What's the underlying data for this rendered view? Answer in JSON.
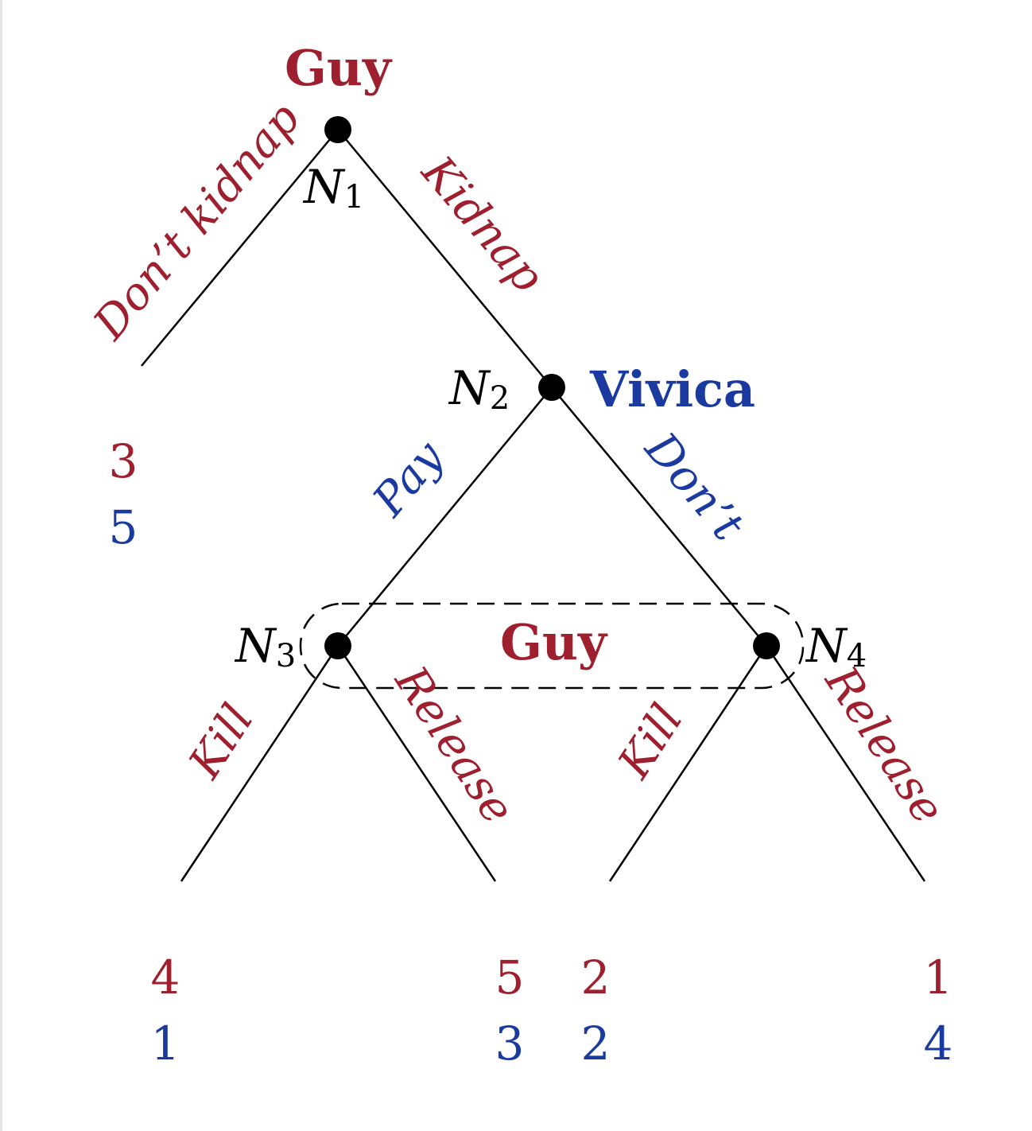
{
  "colors": {
    "guy": "#9e1f2e",
    "vivica": "#1a3aa0",
    "ink": "#000000"
  },
  "players": {
    "top": "Guy",
    "middle": "Vivica",
    "info_set": "Guy"
  },
  "nodes": [
    {
      "letter": "N",
      "sub": "1"
    },
    {
      "letter": "N",
      "sub": "2"
    },
    {
      "letter": "N",
      "sub": "3"
    },
    {
      "letter": "N",
      "sub": "4"
    }
  ],
  "moves": {
    "dont_kidnap": "Don’t kidnap",
    "kidnap": "Kidnap",
    "pay": "Pay",
    "dont": "Don’t",
    "kill_left": "Kill",
    "release_left": "Release",
    "kill_right": "Kill",
    "release_right": "Release"
  },
  "payoffs": [
    {
      "guy": "3",
      "vivica": "5"
    },
    {
      "guy": "4",
      "vivica": "1"
    },
    {
      "guy": "5",
      "vivica": "3"
    },
    {
      "guy": "2",
      "vivica": "2"
    },
    {
      "guy": "1",
      "vivica": "4"
    }
  ]
}
